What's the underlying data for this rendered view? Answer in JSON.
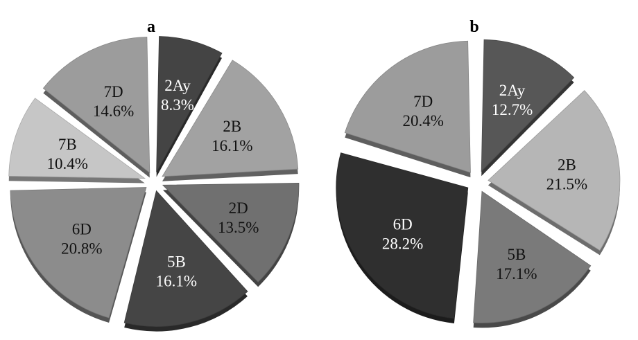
{
  "chart_data": [
    {
      "type": "pie",
      "title": "a",
      "slices": [
        {
          "label": "2Ay",
          "value": 8.3,
          "display": "8.3%",
          "color": "#444444",
          "text_color": "#ffffff"
        },
        {
          "label": "2B",
          "value": 16.1,
          "display": "16.1%",
          "color": "#a2a2a2",
          "text_color": "#111111"
        },
        {
          "label": "2D",
          "value": 13.5,
          "display": "13.5%",
          "color": "#707070",
          "text_color": "#111111"
        },
        {
          "label": "5B",
          "value": 16.1,
          "display": "16.1%",
          "color": "#454545",
          "text_color": "#ffffff"
        },
        {
          "label": "6D",
          "value": 20.8,
          "display": "20.8%",
          "color": "#8c8c8c",
          "text_color": "#111111"
        },
        {
          "label": "7B",
          "value": 10.4,
          "display": "10.4%",
          "color": "#c6c6c6",
          "text_color": "#111111"
        },
        {
          "label": "7D",
          "value": 14.6,
          "display": "14.6%",
          "color": "#9c9c9c",
          "text_color": "#111111"
        }
      ]
    },
    {
      "type": "pie",
      "title": "b",
      "slices": [
        {
          "label": "2Ay",
          "value": 12.7,
          "display": "12.7%",
          "color": "#575757",
          "text_color": "#ffffff"
        },
        {
          "label": "2B",
          "value": 21.5,
          "display": "21.5%",
          "color": "#b6b6b6",
          "text_color": "#111111"
        },
        {
          "label": "5B",
          "value": 17.1,
          "display": "17.1%",
          "color": "#7a7a7a",
          "text_color": "#111111"
        },
        {
          "label": "6D",
          "value": 28.2,
          "display": "28.2%",
          "color": "#2f2f2f",
          "text_color": "#ffffff"
        },
        {
          "label": "7D",
          "value": 20.4,
          "display": "20.4%",
          "color": "#9c9c9c",
          "text_color": "#111111"
        }
      ]
    }
  ]
}
